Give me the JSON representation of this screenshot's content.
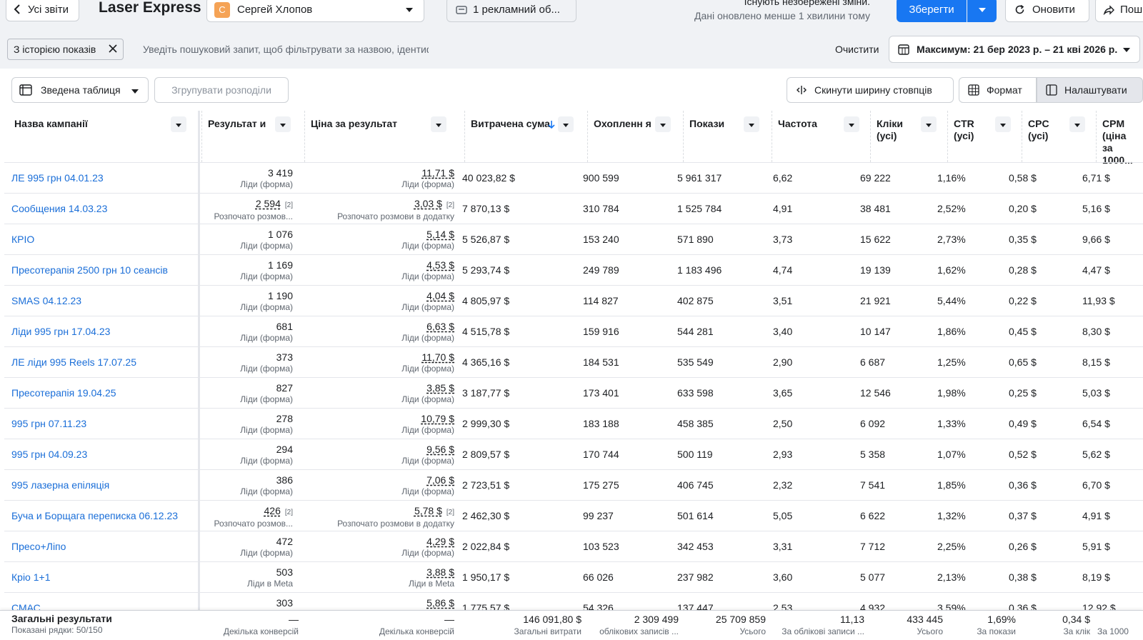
{
  "header": {
    "back_label": "Усі звіти",
    "title": "Laser Express",
    "account_initial": "С",
    "account_name": "Сергей Хлопов",
    "campaign_selector": "1 рекламний об...",
    "notice_title": "Існують незбережені зміни.",
    "notice_sub": "Дані оновлено менше 1 хвилини тому",
    "save_label": "Зберегти",
    "refresh_label": "Оновити",
    "share_label": "Поши"
  },
  "filters": {
    "chip_label": "З історією показів",
    "search_placeholder": "Уведіть пошуковий запит, щоб фільтрувати за назвою, ідентифікатором або показником",
    "clear_label": "Очистити",
    "date_range": "Максимум: 21 бер 2023 р. – 21 кві 2026 р."
  },
  "toolbar": {
    "view_label": "Зведена таблиця",
    "group_label": "Згрупувати розподіли",
    "reset_width_label": "Скинути ширину стовпців",
    "format_label": "Формат",
    "customize_label": "Налаштувати"
  },
  "columns": [
    "Назва кампанії",
    "Результат и",
    "Ціна за результат",
    "Витрачена сума",
    "Охопленн я",
    "Покази",
    "Частота",
    "Кліки (усі)",
    "CTR (усі)",
    "CPC (усі)",
    "CPM (ціна за 1000..."
  ],
  "rows": [
    {
      "name": "ЛЕ 995 грн 04.01.23",
      "result": "3 419",
      "result_type": "Ліди (форма)",
      "cpr": "11,71 $",
      "cpr_type": "Ліди (форма)",
      "spend": "40 023,82 $",
      "reach": "900 599",
      "impr": "5 961 317",
      "freq": "6,62",
      "clicks": "69 222",
      "ctr": "1,16%",
      "cpc": "0,58 $",
      "cpm": "6,71 $"
    },
    {
      "name": "Сообщения 14.03.23",
      "result": "2 594",
      "result_sup": "[2]",
      "result_type": "Розпочато розмов...",
      "cpr": "3,03 $",
      "cpr_sup": "[2]",
      "cpr_type": "Розпочато розмови в додатку",
      "spend": "7 870,13 $",
      "reach": "310 784",
      "impr": "1 525 784",
      "freq": "4,91",
      "clicks": "38 481",
      "ctr": "2,52%",
      "cpc": "0,20 $",
      "cpm": "5,16 $"
    },
    {
      "name": "КРІО",
      "result": "1 076",
      "result_type": "Ліди (форма)",
      "cpr": "5,14 $",
      "cpr_type": "Ліди (форма)",
      "spend": "5 526,87 $",
      "reach": "153 240",
      "impr": "571 890",
      "freq": "3,73",
      "clicks": "15 622",
      "ctr": "2,73%",
      "cpc": "0,35 $",
      "cpm": "9,66 $"
    },
    {
      "name": "Пресотерапія 2500 грн 10 сеансів",
      "result": "1 169",
      "result_type": "Ліди (форма)",
      "cpr": "4,53 $",
      "cpr_type": "Ліди (форма)",
      "spend": "5 293,74 $",
      "reach": "249 789",
      "impr": "1 183 496",
      "freq": "4,74",
      "clicks": "19 139",
      "ctr": "1,62%",
      "cpc": "0,28 $",
      "cpm": "4,47 $"
    },
    {
      "name": "SMAS 04.12.23",
      "result": "1 190",
      "result_type": "Ліди (форма)",
      "cpr": "4,04 $",
      "cpr_type": "Ліди (форма)",
      "spend": "4 805,97 $",
      "reach": "114 827",
      "impr": "402 875",
      "freq": "3,51",
      "clicks": "21 921",
      "ctr": "5,44%",
      "cpc": "0,22 $",
      "cpm": "11,93 $"
    },
    {
      "name": "Ліди 995 грн 17.04.23",
      "result": "681",
      "result_type": "Ліди (форма)",
      "cpr": "6,63 $",
      "cpr_type": "Ліди (форма)",
      "spend": "4 515,78 $",
      "reach": "159 916",
      "impr": "544 281",
      "freq": "3,40",
      "clicks": "10 147",
      "ctr": "1,86%",
      "cpc": "0,45 $",
      "cpm": "8,30 $"
    },
    {
      "name": "ЛЕ ліди 995 Reels 17.07.25",
      "result": "373",
      "result_type": "Ліди (форма)",
      "cpr": "11,70 $",
      "cpr_type": "Ліди (форма)",
      "spend": "4 365,16 $",
      "reach": "184 531",
      "impr": "535 549",
      "freq": "2,90",
      "clicks": "6 687",
      "ctr": "1,25%",
      "cpc": "0,65 $",
      "cpm": "8,15 $"
    },
    {
      "name": "Пресотерапія 19.04.25",
      "result": "827",
      "result_type": "Ліди (форма)",
      "cpr": "3,85 $",
      "cpr_type": "Ліди (форма)",
      "spend": "3 187,77 $",
      "reach": "173 401",
      "impr": "633 598",
      "freq": "3,65",
      "clicks": "12 546",
      "ctr": "1,98%",
      "cpc": "0,25 $",
      "cpm": "5,03 $"
    },
    {
      "name": "995 грн 07.11.23",
      "result": "278",
      "result_type": "Ліди (форма)",
      "cpr": "10,79 $",
      "cpr_type": "Ліди (форма)",
      "spend": "2 999,30 $",
      "reach": "183 188",
      "impr": "458 385",
      "freq": "2,50",
      "clicks": "6 092",
      "ctr": "1,33%",
      "cpc": "0,49 $",
      "cpm": "6,54 $"
    },
    {
      "name": "995 грн 04.09.23",
      "result": "294",
      "result_type": "Ліди (форма)",
      "cpr": "9,56 $",
      "cpr_type": "Ліди (форма)",
      "spend": "2 809,57 $",
      "reach": "170 744",
      "impr": "500 119",
      "freq": "2,93",
      "clicks": "5 358",
      "ctr": "1,07%",
      "cpc": "0,52 $",
      "cpm": "5,62 $"
    },
    {
      "name": "995 лазерна епіляція",
      "result": "386",
      "result_type": "Ліди (форма)",
      "cpr": "7,06 $",
      "cpr_type": "Ліди (форма)",
      "spend": "2 723,51 $",
      "reach": "175 275",
      "impr": "406 745",
      "freq": "2,32",
      "clicks": "7 541",
      "ctr": "1,85%",
      "cpc": "0,36 $",
      "cpm": "6,70 $"
    },
    {
      "name": "Буча и Борщага переписка 06.12.23",
      "result": "426",
      "result_sup": "[2]",
      "result_type": "Розпочато розмов...",
      "cpr": "5,78 $",
      "cpr_sup": "[2]",
      "cpr_type": "Розпочато розмови в додатку",
      "spend": "2 462,30 $",
      "reach": "99 237",
      "impr": "501 614",
      "freq": "5,05",
      "clicks": "6 622",
      "ctr": "1,32%",
      "cpc": "0,37 $",
      "cpm": "4,91 $"
    },
    {
      "name": "Пресо+Ліпо",
      "result": "472",
      "result_type": "Ліди (форма)",
      "cpr": "4,29 $",
      "cpr_type": "Ліди (форма)",
      "spend": "2 022,84 $",
      "reach": "103 523",
      "impr": "342 453",
      "freq": "3,31",
      "clicks": "7 712",
      "ctr": "2,25%",
      "cpc": "0,26 $",
      "cpm": "5,91 $"
    },
    {
      "name": "Кріо 1+1",
      "result": "503",
      "result_type": "Ліди в Meta",
      "cpr": "3,88 $",
      "cpr_type": "Ліди в Meta",
      "spend": "1 950,17 $",
      "reach": "66 026",
      "impr": "237 982",
      "freq": "3,60",
      "clicks": "5 077",
      "ctr": "2,13%",
      "cpc": "0,38 $",
      "cpm": "8,19 $"
    },
    {
      "name": "СМАС",
      "result": "303",
      "result_type": "",
      "cpr": "5,86 $",
      "cpr_type": "",
      "spend": "1 775,57 $",
      "reach": "54 326",
      "impr": "137 447",
      "freq": "2,53",
      "clicks": "4 932",
      "ctr": "3,59%",
      "cpc": "0,36 $",
      "cpm": "12,92 $"
    }
  ],
  "totals": {
    "label": "Загальні результати",
    "shown": "Показані рядки: 50/150",
    "result": "—",
    "result_sub": "Декілька конверсій",
    "cpr": "—",
    "cpr_sub": "Декілька конверсій",
    "spend": "146 091,80 $",
    "spend_sub": "Загальні витрати",
    "reach": "2 309 499",
    "reach_sub": "облікових записів ...",
    "impr": "25 709 859",
    "impr_sub": "Усього",
    "freq": "11,13",
    "freq_sub": "За облікові записи ...",
    "clicks": "433 445",
    "clicks_sub": "Усього",
    "ctr": "1,69%",
    "ctr_sub": "За покази",
    "cpc": "0,34 $",
    "cpc_sub": "За клік",
    "cpm_sub": "За 1000"
  },
  "colors": {
    "accent": "#1877f2",
    "link": "#1a6ed8",
    "avatar": "#f5a356"
  }
}
